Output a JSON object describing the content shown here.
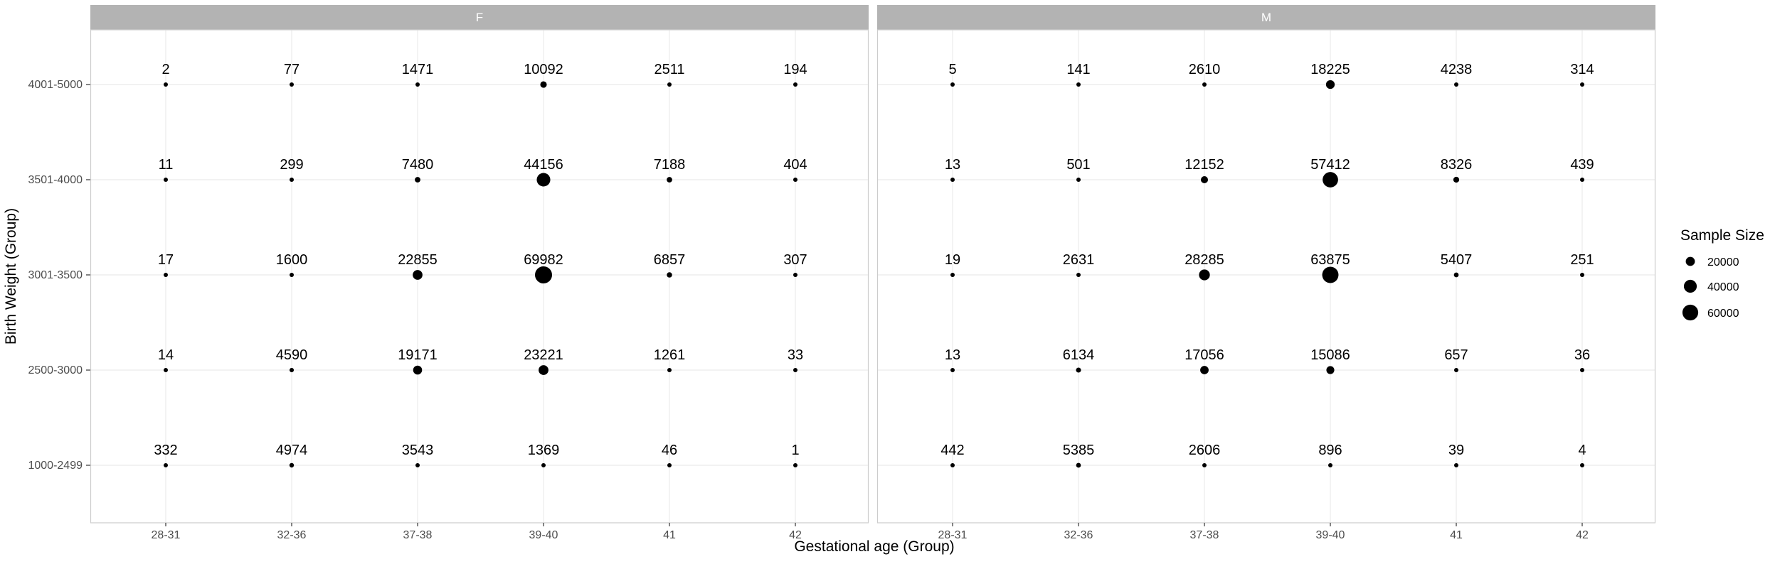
{
  "chart_data": {
    "type": "scatter",
    "xlabel": "Gestational age (Group)",
    "ylabel": "Birth Weight (Group)",
    "x_categories": [
      "28-31",
      "32-36",
      "37-38",
      "39-40",
      "41",
      "42"
    ],
    "y_categories": [
      "1000-2499",
      "2500-3000",
      "3001-3500",
      "3501-4000",
      "4001-5000"
    ],
    "facets": [
      {
        "name": "F",
        "values": [
          [
            332,
            4974,
            3543,
            1369,
            46,
            1
          ],
          [
            14,
            4590,
            19171,
            23221,
            1261,
            33
          ],
          [
            17,
            1600,
            22855,
            69982,
            6857,
            307
          ],
          [
            11,
            299,
            7480,
            44156,
            7188,
            404
          ],
          [
            2,
            77,
            1471,
            10092,
            2511,
            194
          ]
        ]
      },
      {
        "name": "M",
        "values": [
          [
            442,
            5385,
            2606,
            896,
            39,
            4
          ],
          [
            13,
            6134,
            17056,
            15086,
            657,
            36
          ],
          [
            19,
            2631,
            28285,
            63875,
            5407,
            251
          ],
          [
            13,
            501,
            12152,
            57412,
            8326,
            439
          ],
          [
            5,
            141,
            2610,
            18225,
            4238,
            314
          ]
        ]
      }
    ],
    "legend": {
      "title": "Sample Size",
      "entries": [
        20000,
        40000,
        60000
      ],
      "placement": "right"
    },
    "grid": true,
    "colors": {
      "point": "#000000",
      "strip": "#b3b3b3",
      "grid": "#ebebeb",
      "panel_border": "#cccccc"
    }
  }
}
